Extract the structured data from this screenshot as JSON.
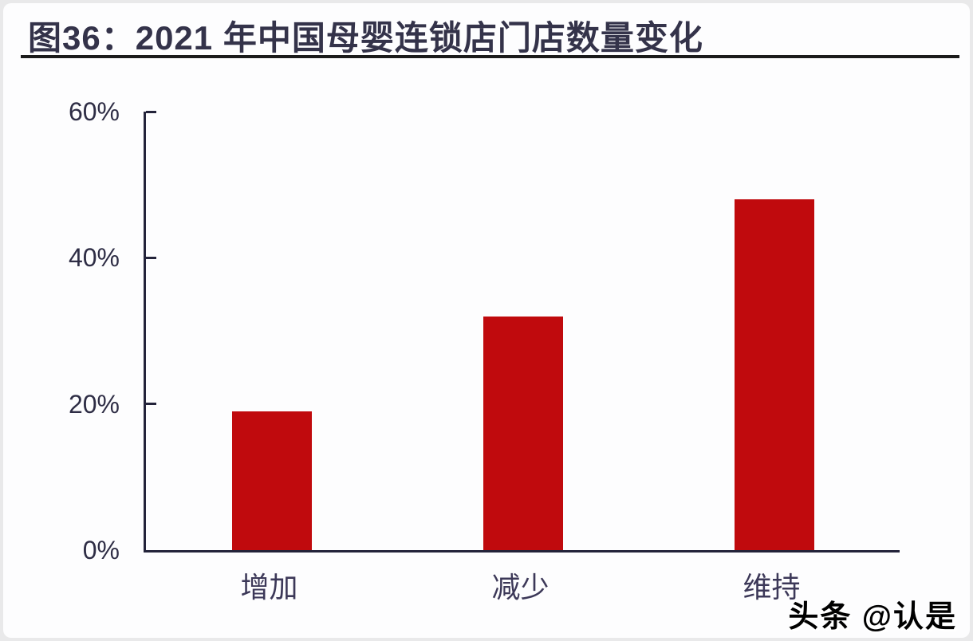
{
  "page": {
    "title": "图36：2021 年中国母婴连锁店门店数量变化",
    "watermark": "头条 @认是"
  },
  "chart_data": {
    "type": "bar",
    "title": "图36：2021 年中国母婴连锁店门店数量变化",
    "categories": [
      "增加",
      "减少",
      "维持"
    ],
    "values": [
      19,
      32,
      48
    ],
    "unit": "%",
    "xlabel": "",
    "ylabel": "",
    "ylim": [
      0,
      60
    ],
    "yticks": [
      0,
      20,
      40,
      60
    ],
    "ytick_labels": [
      "0%",
      "20%",
      "40%",
      "60%"
    ],
    "bar_color": "#c00a0d",
    "grid": false,
    "legend": "none"
  },
  "colors": {
    "bar": "#c00a0d",
    "title_text": "#34334a",
    "axis": "#23233a",
    "tick_text": "#2e2d45",
    "category_text": "#3c3858",
    "title_rule": "#1b1b1b",
    "background": "#fdfdfe"
  }
}
